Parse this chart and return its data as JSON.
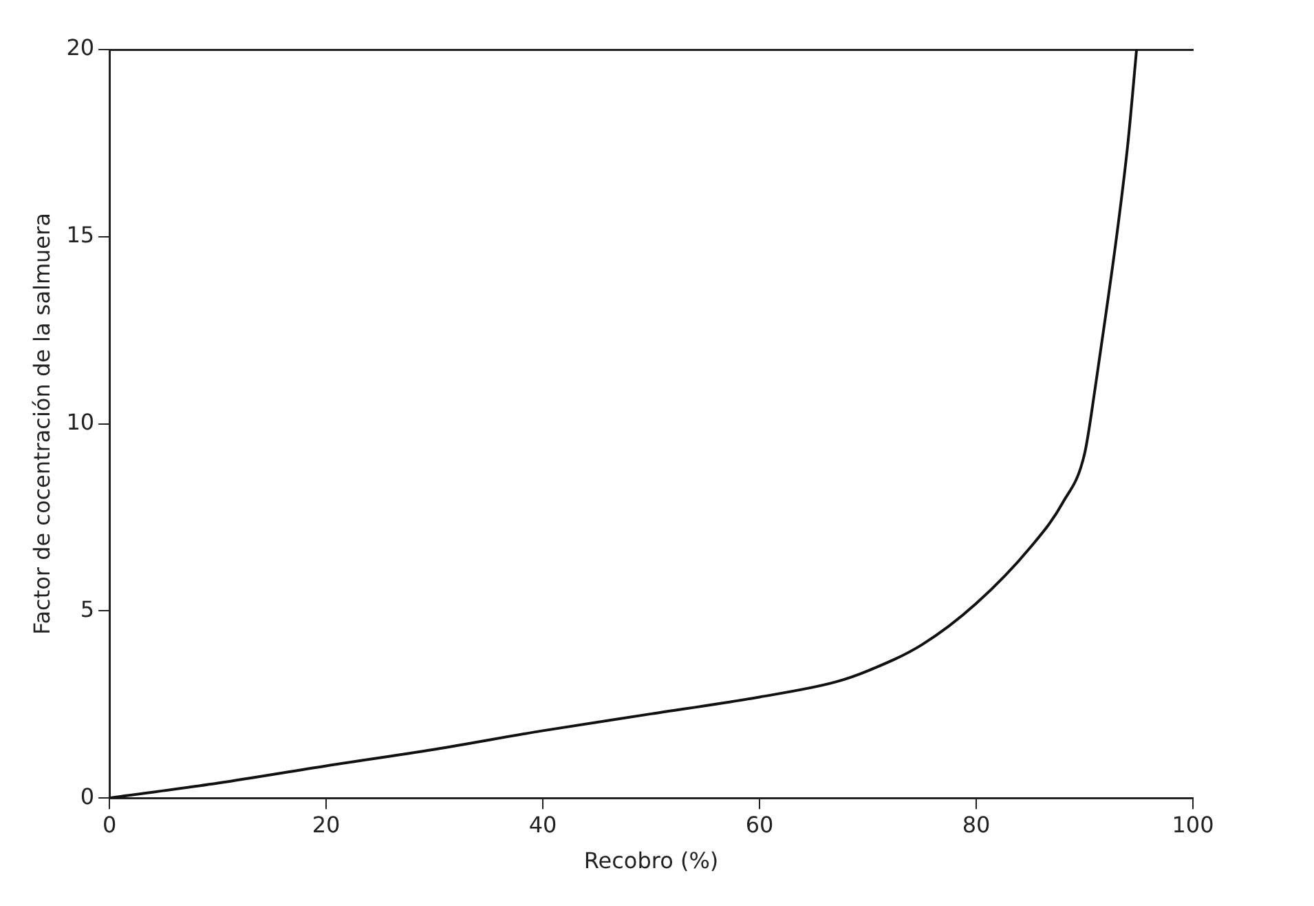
{
  "chart_data": {
    "type": "line",
    "xlabel": "Recobro (%)",
    "ylabel": "Factor de cocentración de la salmuera",
    "x": [
      0,
      10,
      20,
      30,
      40,
      50,
      60,
      67,
      70,
      75,
      80,
      85,
      88,
      90,
      91,
      92,
      93,
      94,
      94.8
    ],
    "series": [
      {
        "color": "#111111",
        "values": [
          0,
          0.4,
          0.86,
          1.3,
          1.8,
          2.25,
          2.7,
          3.1,
          3.4,
          4.1,
          5.2,
          6.7,
          7.9,
          9.2,
          11,
          13,
          15.1,
          17.5,
          20
        ]
      }
    ],
    "xlim": [
      0,
      100
    ],
    "ylim": [
      0,
      20
    ],
    "xticks": [
      0,
      20,
      40,
      60,
      80,
      100
    ],
    "yticks": [
      0,
      5,
      10,
      15,
      20
    ],
    "grid": false,
    "legend": false,
    "marker": "none",
    "line_style": "solid"
  }
}
